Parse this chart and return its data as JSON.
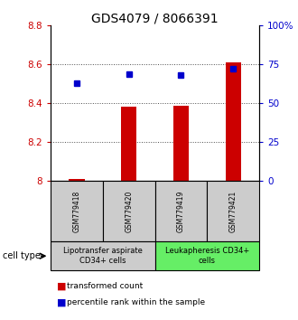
{
  "title": "GDS4079 / 8066391",
  "samples": [
    "GSM779418",
    "GSM779420",
    "GSM779419",
    "GSM779421"
  ],
  "transformed_counts": [
    8.01,
    8.38,
    8.385,
    8.61
  ],
  "percentile_ranks": [
    63,
    69,
    68,
    72
  ],
  "ylim_left": [
    8.0,
    8.8
  ],
  "ylim_right": [
    0,
    100
  ],
  "yticks_left": [
    8.0,
    8.2,
    8.4,
    8.6,
    8.8
  ],
  "ytick_labels_left": [
    "8",
    "8.2",
    "8.4",
    "8.6",
    "8.8"
  ],
  "yticks_right": [
    0,
    25,
    50,
    75,
    100
  ],
  "ytick_labels_right": [
    "0",
    "25",
    "50",
    "75",
    "100%"
  ],
  "bar_color": "#cc0000",
  "dot_color": "#0000cc",
  "bar_bottom": 8.0,
  "bar_width": 0.3,
  "groups": [
    {
      "label": "Lipotransfer aspirate\nCD34+ cells",
      "indices": [
        0,
        1
      ],
      "color": "#cccccc"
    },
    {
      "label": "Leukapheresis CD34+\ncells",
      "indices": [
        2,
        3
      ],
      "color": "#66ee66"
    }
  ],
  "cell_type_label": "cell type",
  "legend_bar_label": "transformed count",
  "legend_dot_label": "percentile rank within the sample",
  "grid_yticks": [
    8.2,
    8.4,
    8.6
  ],
  "sample_box_color": "#cccccc",
  "title_fontsize": 10,
  "tick_fontsize": 7.5,
  "sample_fontsize": 5.5,
  "group_fontsize": 6,
  "legend_fontsize": 6.5,
  "cell_type_fontsize": 7
}
